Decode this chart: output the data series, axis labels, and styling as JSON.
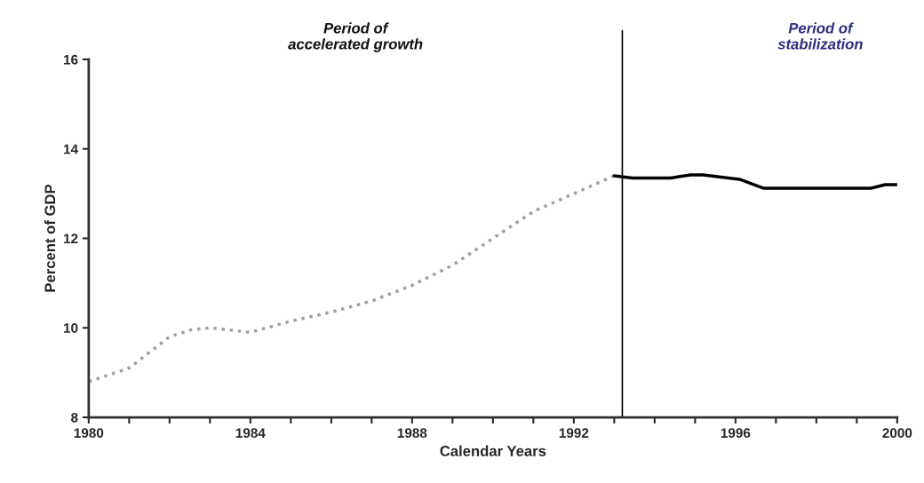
{
  "chart_data": {
    "type": "line",
    "xlabel": "Calendar Years",
    "ylabel": "Percent of GDP",
    "series": [
      {
        "color": "#a0a0a0",
        "line_style": "dotted",
        "x": [
          1980,
          1981,
          1982,
          1982.5,
          1983,
          1984,
          1985,
          1986,
          1987,
          1988,
          1989,
          1990,
          1991,
          1992,
          1993
        ],
        "values": [
          8.8,
          9.1,
          9.8,
          9.95,
          10.0,
          9.9,
          10.15,
          10.35,
          10.6,
          10.95,
          11.4,
          12.0,
          12.6,
          13.0,
          13.4
        ]
      },
      {
        "color": "#000000",
        "line_style": "solid",
        "x": [
          1993,
          1993.45,
          1994.4,
          1994.9,
          1995.2,
          1996.1,
          1996.7,
          1999.35,
          1999.7,
          2000
        ],
        "values": [
          13.4,
          13.35,
          13.35,
          13.42,
          13.42,
          13.32,
          13.12,
          13.12,
          13.2,
          13.2
        ]
      }
    ],
    "xlim": [
      1980,
      2000
    ],
    "xticks": [
      1980,
      {
        "value": 1981,
        "label": null
      },
      {
        "value": 1982,
        "label": null
      },
      {
        "value": 1983,
        "label": null
      },
      1984,
      {
        "value": 1985,
        "label": null
      },
      {
        "value": 1986,
        "label": null
      },
      {
        "value": 1987,
        "label": null
      },
      1988,
      {
        "value": 1989,
        "label": null
      },
      {
        "value": 1990,
        "label": null
      },
      {
        "value": 1991,
        "label": null
      },
      1992,
      {
        "value": 1993,
        "label": null
      },
      {
        "value": 1994,
        "label": null
      },
      {
        "value": 1995,
        "label": null
      },
      1996,
      {
        "value": 1997,
        "label": null
      },
      {
        "value": 1998,
        "label": null
      },
      {
        "value": 1999,
        "label": null
      },
      2000
    ],
    "ylim": [
      8,
      16
    ],
    "yticks": [
      8,
      10,
      12,
      14,
      16
    ],
    "ref_lines": [
      {
        "axis": "x",
        "value": 1993.2,
        "color": "#000000"
      }
    ],
    "annotations": [
      "Period of\naccelerated growth",
      "Period of\nstabilization"
    ],
    "grid": false,
    "legend": false
  }
}
